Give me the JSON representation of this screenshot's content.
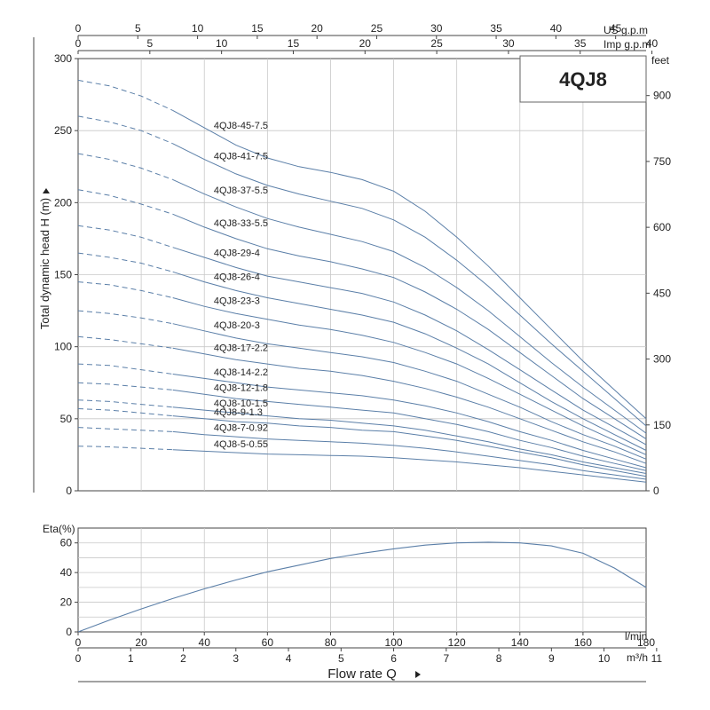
{
  "chart_data": [
    {
      "type": "line",
      "title": "4QJ8",
      "ylabel": "Total dynamic head H (m)",
      "ylabel_right": "feet",
      "ylim": [
        0,
        300
      ],
      "y_ticks": [
        0,
        50,
        100,
        150,
        200,
        250,
        300
      ],
      "y_right_ticks": [
        0,
        150,
        300,
        450,
        600,
        750,
        900
      ],
      "x_unit": "l/min",
      "xlim": [
        0,
        180
      ],
      "top_axes": [
        {
          "label": "US g.p.m",
          "ticks": [
            0,
            5,
            10,
            15,
            20,
            25,
            30,
            35,
            40,
            45
          ]
        },
        {
          "label": "Imp g.p.m",
          "ticks": [
            0,
            5,
            10,
            15,
            20,
            25,
            30,
            35,
            40
          ]
        }
      ],
      "grid": true,
      "series": [
        {
          "name": "4QJ8-45-7.5",
          "x": [
            0,
            10,
            20,
            30,
            40,
            50,
            60,
            70,
            80,
            90,
            100,
            110,
            120,
            130,
            140,
            150,
            160,
            170,
            180
          ],
          "y": [
            285,
            281,
            274,
            264,
            252,
            240,
            231,
            225,
            221,
            216,
            208,
            194,
            176,
            156,
            134,
            112,
            90,
            70,
            50
          ]
        },
        {
          "name": "4QJ8-41-7.5",
          "x": [
            0,
            10,
            20,
            30,
            40,
            50,
            60,
            70,
            80,
            90,
            100,
            110,
            120,
            130,
            140,
            150,
            160,
            170,
            180
          ],
          "y": [
            260,
            256,
            250,
            241,
            230,
            220,
            212,
            206,
            201,
            196,
            188,
            176,
            160,
            142,
            122,
            102,
            83,
            64,
            45
          ]
        },
        {
          "name": "4QJ8-37-5.5",
          "x": [
            0,
            10,
            20,
            30,
            40,
            50,
            60,
            70,
            80,
            90,
            100,
            110,
            120,
            130,
            140,
            150,
            160,
            170,
            180
          ],
          "y": [
            234,
            230,
            224,
            216,
            206,
            197,
            189,
            183,
            178,
            173,
            166,
            155,
            141,
            125,
            107,
            89,
            72,
            56,
            40
          ]
        },
        {
          "name": "4QJ8-33-5.5",
          "x": [
            0,
            10,
            20,
            30,
            40,
            50,
            60,
            70,
            80,
            90,
            100,
            110,
            120,
            130,
            140,
            150,
            160,
            170,
            180
          ],
          "y": [
            209,
            205,
            199,
            192,
            183,
            175,
            168,
            163,
            159,
            154,
            148,
            138,
            126,
            112,
            96,
            80,
            64,
            50,
            36
          ]
        },
        {
          "name": "4QJ8-29-4",
          "x": [
            0,
            10,
            20,
            30,
            40,
            50,
            60,
            70,
            80,
            90,
            100,
            110,
            120,
            130,
            140,
            150,
            160,
            170,
            180
          ],
          "y": [
            184,
            181,
            176,
            169,
            162,
            155,
            149,
            145,
            141,
            137,
            131,
            122,
            111,
            98,
            84,
            70,
            56,
            44,
            32
          ]
        },
        {
          "name": "4QJ8-26-4",
          "x": [
            0,
            10,
            20,
            30,
            40,
            50,
            60,
            70,
            80,
            90,
            100,
            110,
            120,
            130,
            140,
            150,
            160,
            170,
            180
          ],
          "y": [
            165,
            162,
            158,
            152,
            145,
            139,
            134,
            130,
            126,
            122,
            117,
            109,
            99,
            88,
            75,
            62,
            50,
            39,
            28
          ]
        },
        {
          "name": "4QJ8-23-3",
          "x": [
            0,
            10,
            20,
            30,
            40,
            50,
            60,
            70,
            80,
            90,
            100,
            110,
            120,
            130,
            140,
            150,
            160,
            170,
            180
          ],
          "y": [
            145,
            143,
            139,
            134,
            128,
            123,
            119,
            115,
            112,
            108,
            103,
            96,
            88,
            78,
            67,
            56,
            45,
            35,
            25
          ]
        },
        {
          "name": "4QJ8-20-3",
          "x": [
            0,
            10,
            20,
            30,
            40,
            50,
            60,
            70,
            80,
            90,
            100,
            110,
            120,
            130,
            140,
            150,
            160,
            170,
            180
          ],
          "y": [
            125,
            123,
            120,
            116,
            111,
            106,
            102,
            99,
            96,
            93,
            89,
            83,
            76,
            67,
            58,
            48,
            39,
            31,
            22
          ]
        },
        {
          "name": "4QJ8-17-2.2",
          "x": [
            0,
            10,
            20,
            30,
            40,
            50,
            60,
            70,
            80,
            90,
            100,
            110,
            120,
            130,
            140,
            150,
            160,
            170,
            180
          ],
          "y": [
            107,
            105,
            102,
            99,
            95,
            91,
            88,
            85,
            83,
            80,
            76,
            71,
            65,
            58,
            50,
            42,
            34,
            27,
            19
          ]
        },
        {
          "name": "4QJ8-14-2.2",
          "x": [
            0,
            10,
            20,
            30,
            40,
            50,
            60,
            70,
            80,
            90,
            100,
            110,
            120,
            130,
            140,
            150,
            160,
            170,
            180
          ],
          "y": [
            88,
            87,
            84,
            81,
            78,
            75,
            72,
            70,
            68,
            66,
            63,
            59,
            54,
            48,
            41,
            35,
            28,
            22,
            16
          ]
        },
        {
          "name": "4QJ8-12-1.8",
          "x": [
            0,
            10,
            20,
            30,
            40,
            50,
            60,
            70,
            80,
            90,
            100,
            110,
            120,
            130,
            140,
            150,
            160,
            170,
            180
          ],
          "y": [
            75,
            74,
            72,
            70,
            67,
            64,
            62,
            60,
            58,
            56,
            54,
            50,
            46,
            41,
            35,
            30,
            24,
            19,
            14
          ]
        },
        {
          "name": "4QJ8-10-1.5",
          "x": [
            0,
            10,
            20,
            30,
            40,
            50,
            60,
            70,
            80,
            90,
            100,
            110,
            120,
            130,
            140,
            150,
            160,
            170,
            180
          ],
          "y": [
            63,
            62,
            60,
            58,
            56,
            54,
            52,
            50,
            49,
            47,
            45,
            42,
            38,
            34,
            29,
            25,
            20,
            16,
            12
          ]
        },
        {
          "name": "4QJ8-9-1.3",
          "x": [
            0,
            10,
            20,
            30,
            40,
            50,
            60,
            70,
            80,
            90,
            100,
            110,
            120,
            130,
            140,
            150,
            160,
            170,
            180
          ],
          "y": [
            57,
            56,
            54,
            52,
            50,
            48,
            47,
            45,
            44,
            42,
            41,
            38,
            35,
            31,
            27,
            23,
            18,
            14,
            10
          ]
        },
        {
          "name": "4QJ8-7-0.92",
          "x": [
            0,
            10,
            20,
            30,
            40,
            50,
            60,
            70,
            80,
            90,
            100,
            110,
            120,
            130,
            140,
            150,
            160,
            170,
            180
          ],
          "y": [
            44,
            43,
            42,
            41,
            39,
            37.5,
            36,
            35,
            34,
            33,
            31.5,
            29.5,
            27,
            24,
            21,
            18,
            14,
            11,
            8
          ]
        },
        {
          "name": "4QJ8-5-0.55",
          "x": [
            0,
            10,
            20,
            30,
            40,
            50,
            60,
            70,
            80,
            90,
            100,
            110,
            120,
            130,
            140,
            150,
            160,
            170,
            180
          ],
          "y": [
            31,
            30.5,
            29.5,
            28.5,
            27.5,
            26.5,
            25.5,
            25,
            24.5,
            24,
            23,
            21.5,
            20,
            18,
            16,
            13.5,
            11,
            8.5,
            6
          ]
        }
      ]
    },
    {
      "type": "line",
      "ylabel": "Eta(%)",
      "ylim": [
        0,
        70
      ],
      "y_ticks": [
        0,
        20,
        40,
        60
      ],
      "x_unit": "l/min",
      "xlim": [
        0,
        180
      ],
      "x_ticks": [
        0,
        20,
        40,
        60,
        80,
        100,
        120,
        140,
        160,
        180
      ],
      "grid": true,
      "series": [
        {
          "x": [
            0,
            10,
            20,
            30,
            40,
            50,
            60,
            70,
            80,
            90,
            100,
            110,
            120,
            130,
            140,
            150,
            160,
            170,
            180
          ],
          "y": [
            0,
            8,
            15.5,
            22.5,
            29,
            35,
            40.5,
            45,
            49.5,
            53,
            56,
            58.5,
            60,
            60.5,
            60,
            58,
            53,
            43,
            30
          ]
        }
      ]
    }
  ],
  "x_axis_m3h": {
    "unit": "m³/h",
    "ticks": [
      0,
      1,
      2,
      3,
      4,
      5,
      6,
      7,
      8,
      9,
      10,
      11
    ]
  },
  "x_axis_title": "Flow rate Q",
  "colors": {
    "curve": "#5b7fa8",
    "grid": "#c8c8c8",
    "axis": "#444444"
  }
}
